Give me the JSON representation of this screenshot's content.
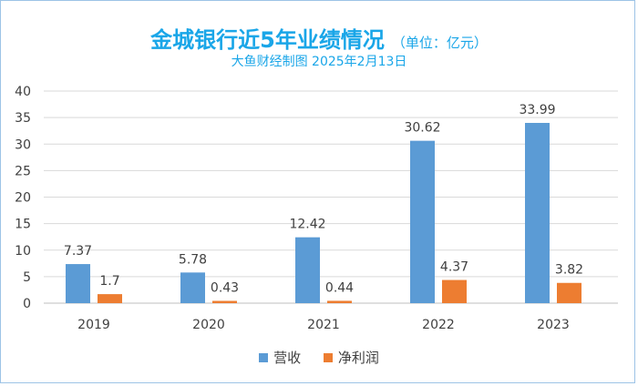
{
  "chart_data": {
    "type": "bar",
    "title": "金城银行近5年业绩情况",
    "unit": "（单位：亿元）",
    "subtitle": "大鱼财经制图 2025年2月13日",
    "categories": [
      "2019",
      "2020",
      "2021",
      "2022",
      "2023"
    ],
    "series": [
      {
        "name": "营收",
        "color": "#5b9bd5",
        "values": [
          7.37,
          5.78,
          12.42,
          30.62,
          33.99
        ],
        "labels": [
          "7.37",
          "5.78",
          "12.42",
          "30.62",
          "33.99"
        ]
      },
      {
        "name": "净利润",
        "color": "#ed7d31",
        "values": [
          1.7,
          0.43,
          0.44,
          4.37,
          3.82
        ],
        "labels": [
          "1.7",
          "0.43",
          "0.44",
          "4.37",
          "3.82"
        ]
      }
    ],
    "ylim": [
      0,
      40
    ],
    "yticks": [
      0,
      5,
      10,
      15,
      20,
      25,
      30,
      35,
      40
    ],
    "grid": true,
    "legend_position": "bottom"
  }
}
